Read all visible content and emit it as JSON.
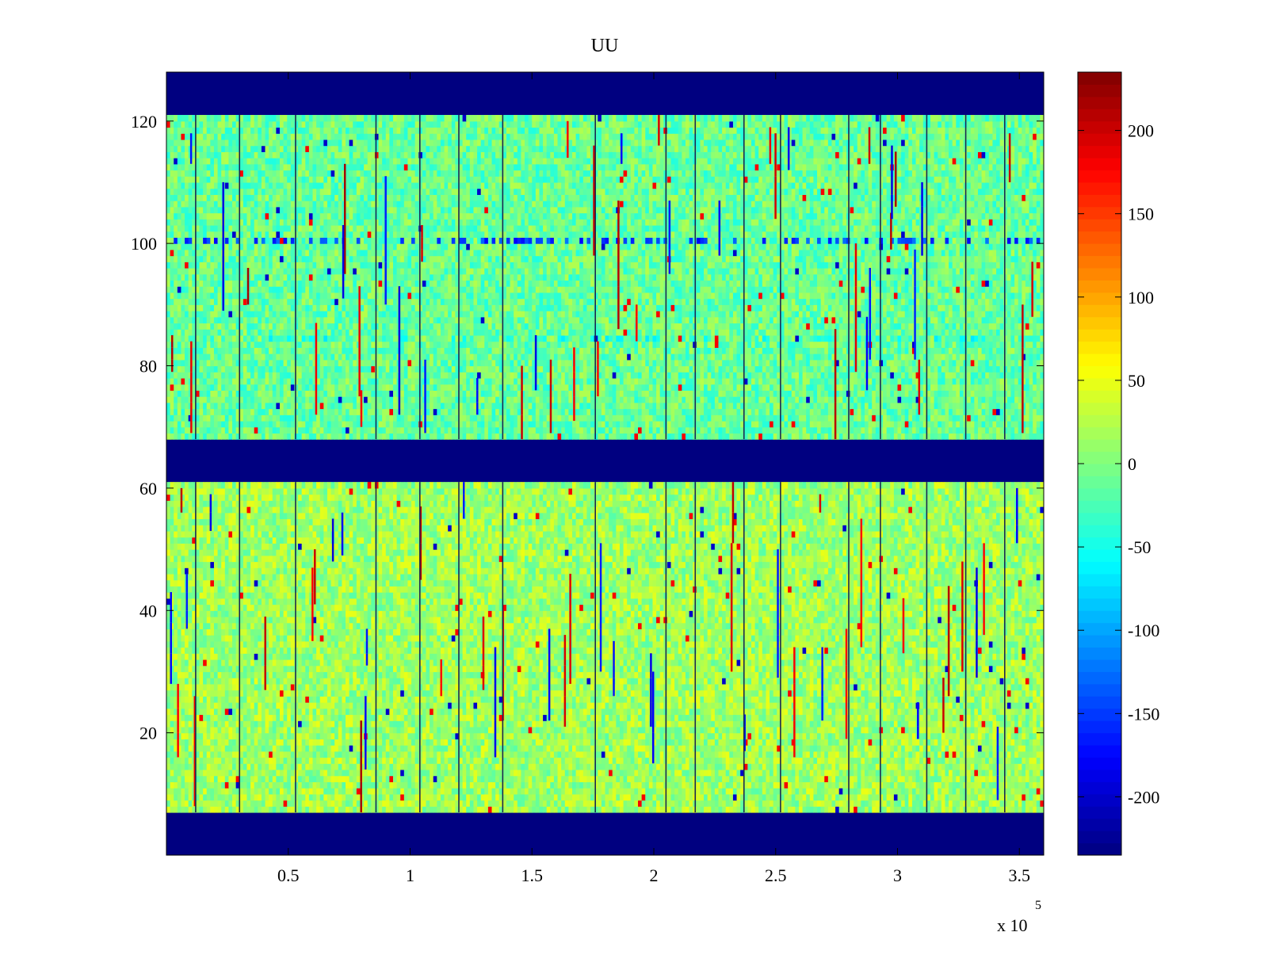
{
  "chart_data": {
    "type": "heatmap",
    "title": "UU",
    "xlabel": "",
    "ylabel": "",
    "x_range": [
      0,
      360000
    ],
    "y_range": [
      0,
      128
    ],
    "x_ticks": [
      50000,
      100000,
      150000,
      200000,
      250000,
      300000,
      350000
    ],
    "x_tick_labels": [
      "0.5",
      "1",
      "1.5",
      "2",
      "2.5",
      "3",
      "3.5"
    ],
    "x_exponent_label": "x 10",
    "x_exponent_power": "5",
    "y_ticks": [
      20,
      40,
      60,
      80,
      100,
      120
    ],
    "y_tick_labels": [
      "20",
      "40",
      "60",
      "80",
      "100",
      "120"
    ],
    "colorbar": {
      "colormap": "jet",
      "range": [
        -235,
        235
      ],
      "ticks": [
        -200,
        -150,
        -100,
        -50,
        0,
        50,
        100,
        150,
        200
      ],
      "tick_labels": [
        "-200",
        "-150",
        "-100",
        "-50",
        "0",
        "50",
        "100",
        "150",
        "200"
      ]
    },
    "masked_row_bands": [
      {
        "y_from": 0,
        "y_to": 7,
        "value": -235
      },
      {
        "y_from": 61,
        "y_to": 68,
        "value": -235
      },
      {
        "y_from": 121,
        "y_to": 128,
        "value": -235
      }
    ],
    "data_row_bands": [
      {
        "y_from": 7,
        "y_to": 61,
        "typical_value": 15
      },
      {
        "y_from": 68,
        "y_to": 121,
        "typical_value": -10
      }
    ],
    "notable_rows": [
      {
        "y": 100,
        "description_value": -150
      },
      {
        "y": 84,
        "description_value": -40
      }
    ],
    "dark_vertical_lines_x": [
      12000,
      30000,
      53000,
      86000,
      104000,
      120000,
      138000,
      176000,
      205000,
      217000,
      237000,
      252000,
      280000,
      293000,
      312000,
      328000,
      344000
    ]
  }
}
